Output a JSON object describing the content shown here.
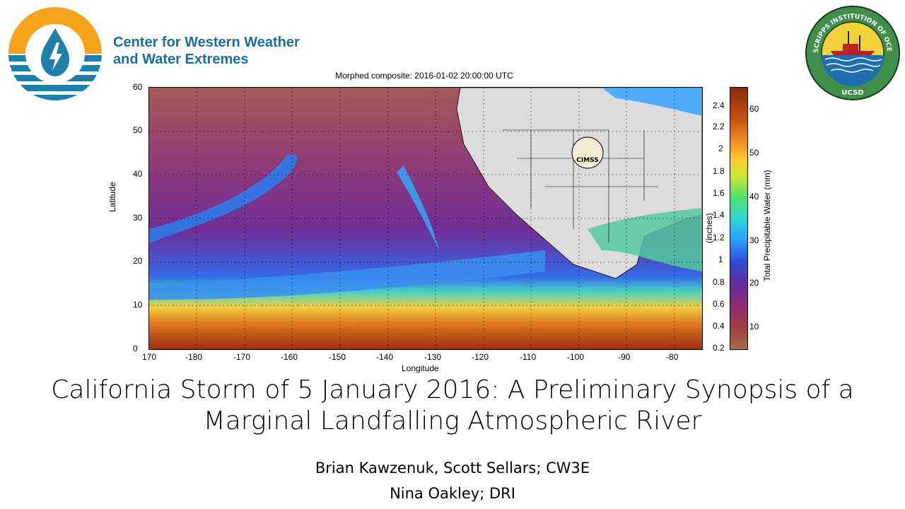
{
  "header": {
    "org_name_line1": "Center for Western Weather",
    "org_name_line2": "and Water Extremes",
    "right_logo_text": "SCRIPPS INSTITUTION OF OCEANOGRAPHY",
    "right_logo_bottom": "UCSD"
  },
  "figure": {
    "title": "Morphed composite: 2016-01-02 20:00:00 UTC",
    "xlabel": "Longitude",
    "ylabel": "Latitude",
    "x_ticks": [
      "170",
      "-180",
      "-170",
      "-160",
      "-150",
      "-140",
      "-130",
      "-120",
      "-110",
      "-100",
      "-90",
      "-80"
    ],
    "y_ticks": [
      "0",
      "10",
      "20",
      "30",
      "40",
      "50",
      "60"
    ],
    "colorbar_inches": [
      "2.4",
      "2.2",
      "2",
      "1.8",
      "1.6",
      "1.4",
      "1.2",
      "1",
      "0.8",
      "0.6",
      "0.4",
      "0.2"
    ],
    "colorbar_mm": [
      "60",
      "50",
      "40",
      "30",
      "20",
      "10"
    ],
    "colorbar_left_label": "(inches)",
    "colorbar_right_label": "Total Precipitable Water (mm)",
    "watermark": "CIMSS"
  },
  "slide": {
    "title_line1": "California Storm of 5 January 2016: A Preliminary Synopsis of a",
    "title_line2": "Marginal Landfalling Atmospheric River",
    "author_line1": "Brian Kawzenuk, Scott Sellars; CW3E",
    "author_line2": "Nina Oakley; DRI"
  },
  "colors": {
    "org_blue": "#1f6e9a",
    "logo_orange": "#f7a21b",
    "logo_teal": "#1e7fa8",
    "scripps_green": "#3f8f4a"
  }
}
